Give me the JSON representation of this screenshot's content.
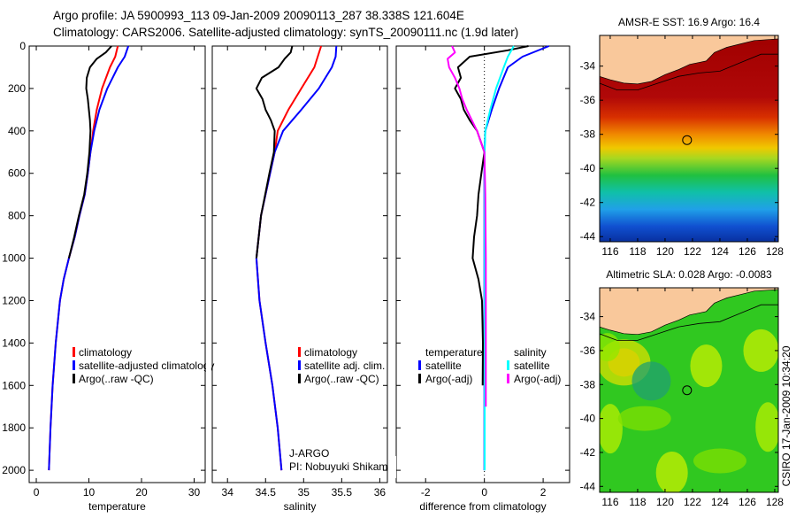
{
  "header": {
    "line1": "Argo profile: JA 5900993_113 09-Jan-2009 20090113_287 38.338S 121.604E",
    "line2": "Climatology: CARS2006. Satellite-adjusted climatology: synTS_20090111.nc (1.9d later)"
  },
  "footer_stamp": "CSIRO 17-Jan-2009 10:34:20",
  "chart_data": [
    {
      "type": "line",
      "id": "temperature",
      "xlabel": "temperature",
      "ylabel": "",
      "xlim": [
        -1.35,
        32.1
      ],
      "ylim": [
        2058,
        0
      ],
      "xticks": [
        "0",
        "10",
        "20",
        "30"
      ],
      "yticks": [
        "0",
        "200",
        "400",
        "600",
        "800",
        "1000",
        "1200",
        "1400",
        "1600",
        "1800",
        "2000"
      ],
      "series": [
        {
          "name": "climatology",
          "color": "#ff0000",
          "depth": [
            0,
            50,
            100,
            200,
            300,
            400,
            500,
            600,
            700,
            800,
            900,
            1000,
            1100,
            1200,
            1400,
            1600,
            1800,
            2000
          ],
          "values": [
            15.5,
            15.0,
            14.0,
            12.5,
            11.5,
            10.8,
            10.3,
            9.8,
            9.2,
            8.2,
            7.3,
            6.2,
            5.2,
            4.5,
            3.7,
            3.1,
            2.7,
            2.4
          ]
        },
        {
          "name": "satellite-adjusted climatology",
          "color": "#0000ff",
          "depth": [
            0,
            50,
            100,
            200,
            300,
            400,
            500,
            600,
            700,
            800,
            900,
            1000,
            1100,
            1200,
            1400,
            1600,
            1800,
            2000
          ],
          "values": [
            17.5,
            16.8,
            15.5,
            13.5,
            12.0,
            11.0,
            10.3,
            9.8,
            9.2,
            8.2,
            7.3,
            6.2,
            5.2,
            4.5,
            3.7,
            3.1,
            2.7,
            2.4
          ]
        },
        {
          "name": "Argo(..raw -QC)",
          "color": "#000000",
          "depth": [
            0,
            30,
            60,
            100,
            150,
            200,
            250,
            300,
            350,
            400,
            450,
            500,
            600,
            700,
            800,
            900,
            1000
          ],
          "values": [
            14.3,
            13.2,
            11.5,
            10.2,
            9.6,
            9.5,
            9.8,
            10.0,
            10.2,
            10.3,
            10.2,
            10.1,
            9.7,
            9.1,
            8.1,
            7.2,
            6.2
          ]
        }
      ]
    },
    {
      "type": "line",
      "id": "salinity",
      "xlabel": "salinity",
      "xlim": [
        33.8,
        36.1
      ],
      "ylim": [
        2058,
        0
      ],
      "xticks": [
        "34",
        "34.5",
        "35",
        "35.5",
        "36"
      ],
      "xtick_values": [
        34,
        34.5,
        35,
        35.5,
        36
      ],
      "series": [
        {
          "name": "climatology",
          "color": "#ff0000",
          "depth": [
            0,
            100,
            200,
            300,
            400,
            500,
            600,
            800,
            1000,
            1200,
            1400,
            1600,
            1800,
            2000
          ],
          "values": [
            35.23,
            35.14,
            34.97,
            34.8,
            34.66,
            34.62,
            34.56,
            34.44,
            34.38,
            34.42,
            34.5,
            34.59,
            34.66,
            34.71
          ]
        },
        {
          "name": "satellite adj. clim.",
          "color": "#0000ff",
          "depth": [
            0,
            50,
            100,
            200,
            300,
            400,
            500,
            600,
            800,
            1000,
            1200,
            1400,
            1600,
            1800,
            2000
          ],
          "values": [
            35.43,
            35.42,
            35.37,
            35.2,
            34.97,
            34.73,
            34.62,
            34.56,
            34.44,
            34.38,
            34.42,
            34.5,
            34.59,
            34.66,
            34.71
          ]
        },
        {
          "name": "Argo(..raw -QC)",
          "color": "#000000",
          "depth": [
            0,
            30,
            60,
            100,
            150,
            200,
            250,
            300,
            350,
            400,
            500,
            600,
            800,
            1000
          ],
          "values": [
            34.85,
            34.83,
            34.75,
            34.67,
            34.45,
            34.38,
            34.46,
            34.5,
            34.57,
            34.62,
            34.61,
            34.55,
            34.44,
            34.38
          ]
        }
      ],
      "annotations": {
        "program": "J-ARGO",
        "pi": "PI: Nobuyuki Shikama"
      }
    },
    {
      "type": "line",
      "id": "difference",
      "xlabel": "difference from climatology",
      "xlim": [
        -3.0,
        2.9
      ],
      "ylim": [
        2058,
        0
      ],
      "xticks": [
        "-2",
        "0",
        "2"
      ],
      "xtick_values": [
        -2,
        0,
        2
      ],
      "legend_headers": {
        "temperature": "temperature",
        "salinity": "salinity"
      },
      "series": [
        {
          "name": "satellite",
          "group": "temperature",
          "color": "#0000ff",
          "depth": [
            0,
            50,
            100,
            200,
            300,
            400,
            500,
            2000
          ],
          "values": [
            2.2,
            1.3,
            0.8,
            0.5,
            0.25,
            0.03,
            0,
            0
          ]
        },
        {
          "name": "Argo(-adj)",
          "group": "temperature",
          "color": "#000000",
          "depth": [
            0,
            20,
            50,
            100,
            150,
            200,
            250,
            300,
            350,
            400,
            500,
            600,
            700,
            800,
            900,
            1000,
            1100,
            1200,
            1400,
            1600
          ],
          "values": [
            1.5,
            0.8,
            -0.5,
            -0.9,
            -0.8,
            -1.0,
            -0.8,
            -0.7,
            -0.5,
            -0.25,
            0,
            -0.1,
            -0.2,
            -0.25,
            -0.35,
            -0.4,
            -0.2,
            -0.08,
            -0.05,
            -0.06
          ]
        },
        {
          "name": "satellite",
          "group": "salinity",
          "color": "#00ffff",
          "depth": [
            0,
            50,
            100,
            200,
            300,
            400,
            500,
            2000
          ],
          "values": [
            1.0,
            0.8,
            0.66,
            0.4,
            0.2,
            0.03,
            0.01,
            0.01
          ]
        },
        {
          "name": "Argo(-adj)",
          "group": "salinity",
          "color": "#ff00ff",
          "depth": [
            0,
            30,
            60,
            100,
            150,
            200,
            250,
            300,
            400,
            500,
            700,
            1000,
            1400,
            1700
          ],
          "values": [
            -1.1,
            -1.0,
            -1.25,
            -1.2,
            -1.0,
            -0.85,
            -0.75,
            -0.6,
            -0.25,
            0,
            0.03,
            0.05,
            0.05,
            0.05
          ]
        }
      ]
    }
  ],
  "maps": [
    {
      "id": "sst",
      "title": "AMSR-E SST: 16.9 Argo: 16.4",
      "lon_ticks": [
        "116",
        "118",
        "120",
        "122",
        "124",
        "126",
        "128"
      ],
      "lat_ticks": [
        "-34",
        "-36",
        "-38",
        "-40",
        "-42",
        "-44"
      ],
      "argo_position": {
        "lon": 121.604,
        "lat": -38.338
      },
      "colorbands": [
        {
          "lat": -32.2,
          "color": "#a00000"
        },
        {
          "lat": -35.8,
          "color": "#b00808"
        },
        {
          "lat": -37.0,
          "color": "#d83000"
        },
        {
          "lat": -38.0,
          "color": "#f08800"
        },
        {
          "lat": -38.8,
          "color": "#f0c800"
        },
        {
          "lat": -39.4,
          "color": "#a8d820"
        },
        {
          "lat": -40.4,
          "color": "#20c040"
        },
        {
          "lat": -41.4,
          "color": "#10c0a8"
        },
        {
          "lat": -42.4,
          "color": "#20a0e8"
        },
        {
          "lat": -43.4,
          "color": "#1050d0"
        },
        {
          "lat": -44.3,
          "color": "#0830a0"
        }
      ]
    },
    {
      "id": "sla",
      "title": "Altimetric SLA: 0.028 Argo: -0.0083",
      "lon_ticks": [
        "116",
        "118",
        "120",
        "122",
        "124",
        "126",
        "128"
      ],
      "lat_ticks": [
        "-34",
        "-36",
        "-38",
        "-40",
        "-42",
        "-44"
      ],
      "argo_position": {
        "lon": 121.604,
        "lat": -38.338
      }
    }
  ],
  "colors": {
    "land": "#f9c89b",
    "ocean_sla": "#30c820"
  }
}
